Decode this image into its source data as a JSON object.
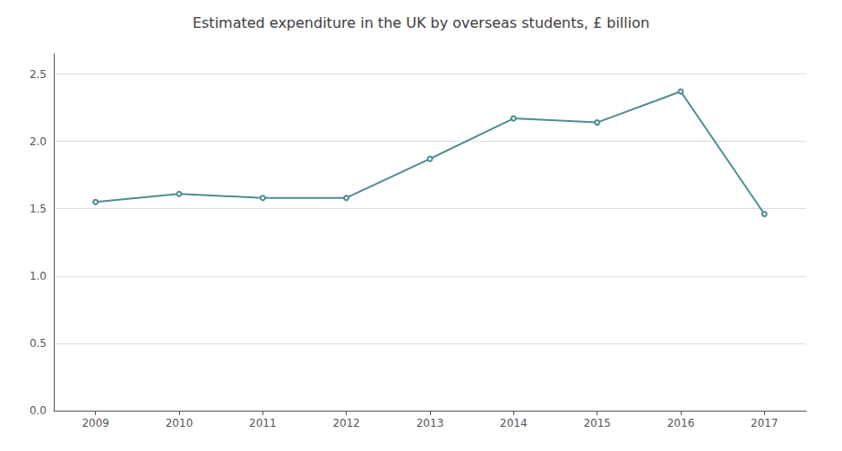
{
  "chart_data": {
    "type": "line",
    "title": "Estimated expenditure in the UK by overseas students, £ billion",
    "x": [
      2009,
      2010,
      2011,
      2012,
      2013,
      2014,
      2015,
      2016,
      2017
    ],
    "values": [
      1.55,
      1.61,
      1.58,
      1.58,
      1.87,
      2.17,
      2.14,
      2.37,
      1.46
    ],
    "color": "#4e8c94",
    "xlim": [
      2008.5,
      2017.5
    ],
    "xticks": [
      2009,
      2010,
      2011,
      2012,
      2013,
      2014,
      2015,
      2016,
      2017
    ],
    "ylim": [
      0.0,
      2.65
    ],
    "yticks": [
      {
        "value": 0.0,
        "label": "0.0"
      },
      0.5,
      {
        "value": 1.0,
        "label": "1.0"
      },
      1.5,
      {
        "value": 2.0,
        "label": "2.0"
      },
      2.5
    ],
    "grid": true
  }
}
